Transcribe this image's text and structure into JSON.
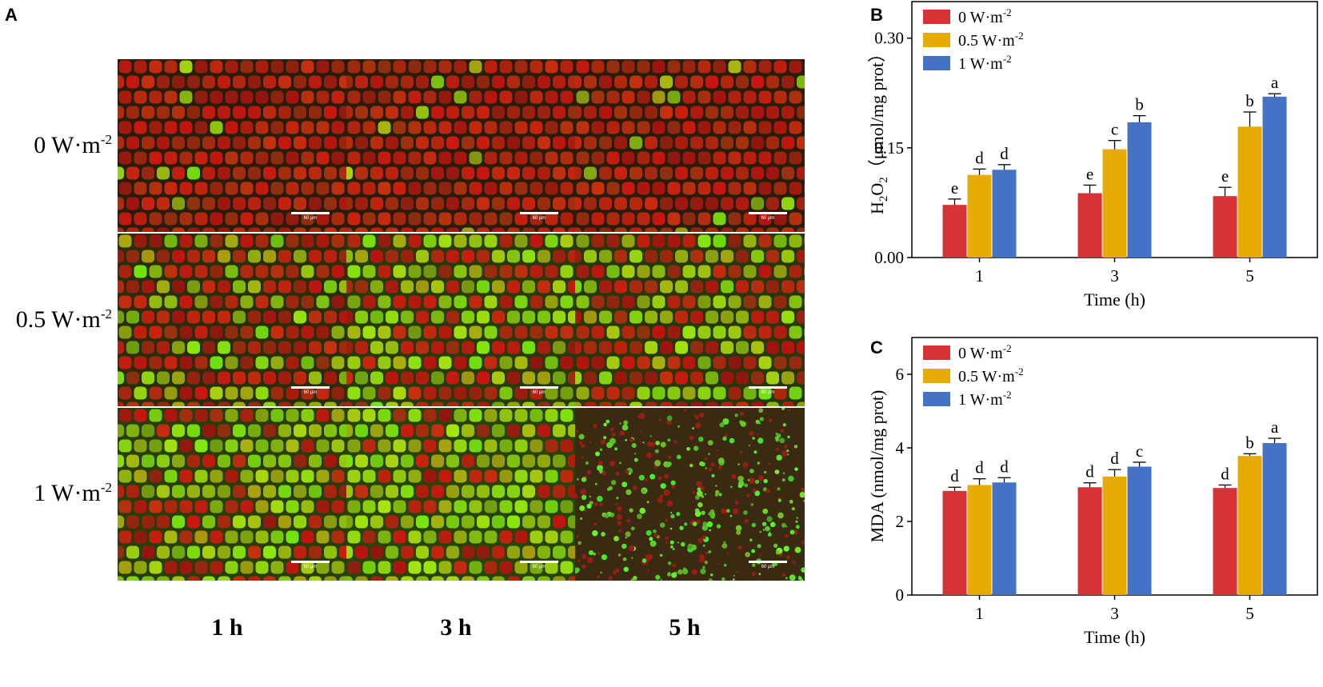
{
  "panels": {
    "a": "A",
    "b": "B",
    "c": "C"
  },
  "micrographs": {
    "rows": [
      {
        "base": "0 W·m",
        "sup": "-2"
      },
      {
        "base": "0.5 W·m",
        "sup": "-2"
      },
      {
        "base": "1 W·m",
        "sup": "-2"
      }
    ],
    "columns": [
      "1 h",
      "3 h",
      "5 h"
    ],
    "scale_bar": "60 µm",
    "green_level": [
      [
        0.05,
        0.05,
        0.05
      ],
      [
        0.35,
        0.55,
        0.5
      ],
      [
        0.6,
        0.7,
        0.9
      ]
    ]
  },
  "chart_data": [
    {
      "panel": "B",
      "type": "bar",
      "categories": [
        "1",
        "3",
        "5"
      ],
      "xlabel": "Time (h)",
      "ylabel": "H2O2（μmol/mg prot）",
      "ylim": [
        0,
        0.35
      ],
      "yticks": [
        "0.00",
        "0.15",
        "0.30"
      ],
      "legend_position": "top-left",
      "series": [
        {
          "name": "0 W·m-2",
          "color": "#d63336",
          "values": [
            0.072,
            0.088,
            0.084
          ],
          "errors": [
            0.008,
            0.011,
            0.012
          ],
          "letters": [
            "e",
            "e",
            "e"
          ]
        },
        {
          "name": "0.5 W·m-2",
          "color": "#e6ac05",
          "values": [
            0.113,
            0.148,
            0.179
          ],
          "errors": [
            0.008,
            0.012,
            0.02
          ],
          "letters": [
            "d",
            "c",
            "b"
          ]
        },
        {
          "name": "1 W·m-2",
          "color": "#4472c4",
          "values": [
            0.12,
            0.185,
            0.22
          ],
          "errors": [
            0.007,
            0.009,
            0.004
          ],
          "letters": [
            "d",
            "b",
            "a"
          ]
        }
      ]
    },
    {
      "panel": "C",
      "type": "bar",
      "categories": [
        "1",
        "3",
        "5"
      ],
      "xlabel": "Time (h)",
      "ylabel": "MDA (nmol/mg prot)",
      "ylim": [
        0,
        7
      ],
      "yticks": [
        "0",
        "2",
        "4",
        "6"
      ],
      "legend_position": "top-left",
      "series": [
        {
          "name": "0 W·m-2",
          "color": "#d63336",
          "values": [
            2.83,
            2.93,
            2.91
          ],
          "errors": [
            0.1,
            0.12,
            0.08
          ],
          "letters": [
            "d",
            "d",
            "d"
          ]
        },
        {
          "name": "0.5 W·m-2",
          "color": "#e6ac05",
          "values": [
            2.99,
            3.22,
            3.78
          ],
          "errors": [
            0.17,
            0.19,
            0.06
          ],
          "letters": [
            "d",
            "d",
            "b"
          ]
        },
        {
          "name": "1 W·m-2",
          "color": "#4472c4",
          "values": [
            3.06,
            3.49,
            4.13
          ],
          "errors": [
            0.13,
            0.12,
            0.13
          ],
          "letters": [
            "d",
            "c",
            "a"
          ]
        }
      ]
    }
  ]
}
